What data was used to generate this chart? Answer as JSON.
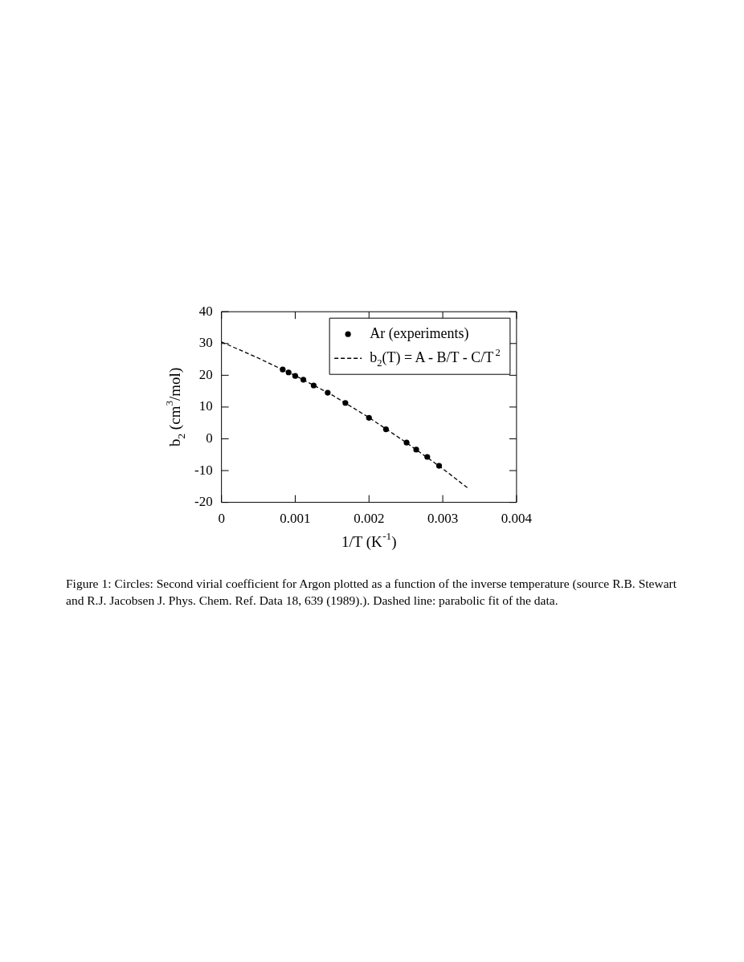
{
  "chart_data": {
    "type": "scatter",
    "xlabel": "1/T (K$^{-1}$)",
    "ylabel": "b$_{2}$ (cm$^{3}$/mol)",
    "xlim": [
      0,
      0.004
    ],
    "xticks": [
      0,
      0.001,
      0.002,
      0.003,
      0.004
    ],
    "ylim": [
      -20,
      40
    ],
    "yticks": [
      -20,
      -10,
      0,
      10,
      20,
      30,
      40
    ],
    "legend": "top right",
    "series": [
      {
        "name": "Ar (experiments)",
        "color": "#000000",
        "marker": "circle",
        "x": [
          0.00083,
          0.00091,
          0.001,
          0.00111,
          0.00125,
          0.00144,
          0.00168,
          0.002,
          0.00223,
          0.00251,
          0.00264,
          0.00279,
          0.00295
        ],
        "values": [
          21.8,
          20.9,
          19.8,
          18.6,
          16.8,
          14.5,
          11.3,
          6.6,
          3.0,
          -1.2,
          -3.4,
          -5.7,
          -8.5
        ]
      },
      {
        "name": "b$_{2}$(T) = A - B/T - C/T$^{2}$",
        "type": "line",
        "color": "#000000",
        "marker": "none",
        "line_style": "dashed",
        "x": [
          0,
          0.0005,
          0.001,
          0.0015,
          0.002,
          0.0025,
          0.003,
          0.00335
        ],
        "values": [
          30.5,
          25.4,
          19.9,
          13.8,
          6.7,
          -1.1,
          -9.4,
          -15.7
        ]
      }
    ],
    "annotations": [
      "Figure 1: Circles: Second virial coefficient for Argon plotted as a function of the inverse temperature (source R.B. Stewart and R.J. Jacobsen J. Phys. Chem. Ref. Data 18, 639 (1989).). Dashed line: parabolic fit of the data."
    ]
  }
}
